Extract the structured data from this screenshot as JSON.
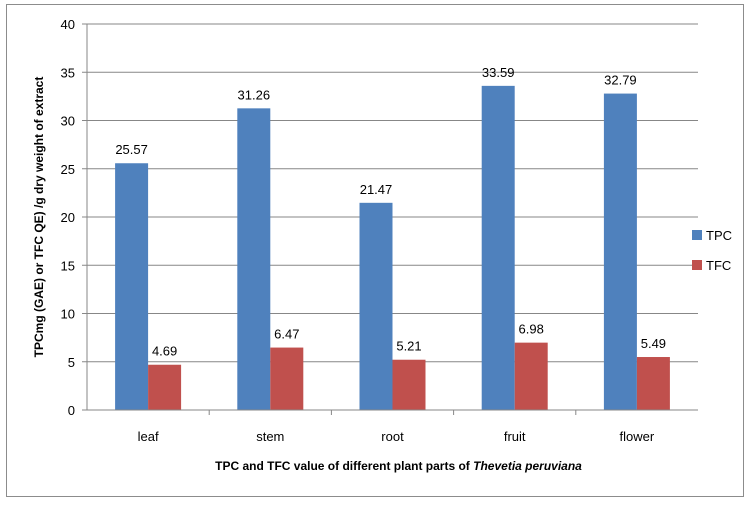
{
  "chart_data": {
    "type": "bar",
    "categories": [
      "leaf",
      "stem",
      "root",
      "fruit",
      "flower"
    ],
    "series": [
      {
        "name": "TPC",
        "values": [
          25.57,
          31.26,
          21.47,
          33.59,
          32.79
        ],
        "labels": [
          "25.57",
          "31.26",
          "21.47",
          "33.59",
          "32.79"
        ],
        "color": "#4F81BD"
      },
      {
        "name": "TFC",
        "values": [
          4.69,
          6.47,
          5.21,
          6.98,
          5.49
        ],
        "labels": [
          "4.69",
          "6.47",
          "5.21",
          "6.98",
          "5.49"
        ],
        "color": "#C0504D"
      }
    ],
    "ylabel": "TPCmg (GAE) or TFC QE) /g dry weight of extract",
    "xlabel_main": "TPC and TFC value of different plant parts  of ",
    "xlabel_italic": "Thevetia peruviana",
    "ylim": [
      0,
      40
    ],
    "yticks": [
      "0",
      "5",
      "10",
      "15",
      "20",
      "25",
      "30",
      "35",
      "40"
    ],
    "grid": true,
    "legend_position": "right"
  }
}
